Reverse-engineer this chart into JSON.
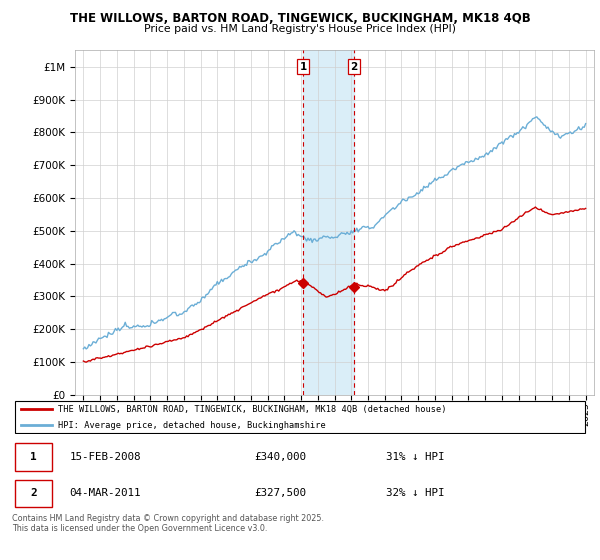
{
  "title1": "THE WILLOWS, BARTON ROAD, TINGEWICK, BUCKINGHAM, MK18 4QB",
  "title2": "Price paid vs. HM Land Registry's House Price Index (HPI)",
  "legend_label1": "THE WILLOWS, BARTON ROAD, TINGEWICK, BUCKINGHAM, MK18 4QB (detached house)",
  "legend_label2": "HPI: Average price, detached house, Buckinghamshire",
  "sale1_date": "15-FEB-2008",
  "sale1_price": "£340,000",
  "sale1_note": "31% ↓ HPI",
  "sale2_date": "04-MAR-2011",
  "sale2_price": "£327,500",
  "sale2_note": "32% ↓ HPI",
  "footer": "Contains HM Land Registry data © Crown copyright and database right 2025.\nThis data is licensed under the Open Government Licence v3.0.",
  "sale1_x": 2008.12,
  "sale1_y": 340000,
  "sale2_x": 2011.17,
  "sale2_y": 327500,
  "hpi_color": "#6baed6",
  "price_color": "#cc0000",
  "shaded_color": "#daeef8",
  "vline_color": "#cc0000",
  "ylim_max": 1050000,
  "xlim_min": 1994.5,
  "xlim_max": 2025.5,
  "yticks": [
    0,
    100000,
    200000,
    300000,
    400000,
    500000,
    600000,
    700000,
    800000,
    900000,
    1000000
  ],
  "ytick_labels": [
    "£0",
    "£100K",
    "£200K",
    "£300K",
    "£400K",
    "£500K",
    "£600K",
    "£700K",
    "£800K",
    "£900K",
    "£1M"
  ]
}
